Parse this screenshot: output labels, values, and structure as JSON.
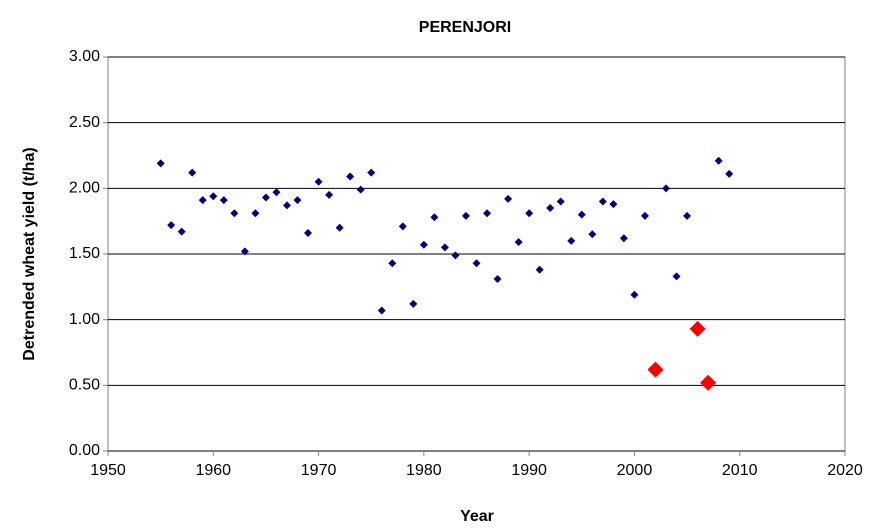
{
  "chart_data": {
    "type": "scatter",
    "title": "PERENJORI",
    "x_label": "Year",
    "y_label": "Detrended wheat yield (t/ha)",
    "series": [
      {
        "color": "#000080",
        "marker_size": 4,
        "x": [
          1955,
          1956,
          1957,
          1958,
          1959,
          1960,
          1961,
          1962,
          1963,
          1964,
          1965,
          1966,
          1967,
          1968,
          1969,
          1970,
          1971,
          1972,
          1973,
          1974,
          1975,
          1976,
          1977,
          1978,
          1979,
          1980,
          1981,
          1982,
          1983,
          1984,
          1985,
          1986,
          1987,
          1988,
          1989,
          1990,
          1991,
          1992,
          1993,
          1994,
          1995,
          1996,
          1997,
          1998,
          1999,
          2000,
          2001,
          2003,
          2004,
          2005,
          2008,
          2009
        ],
        "values": [
          2.19,
          1.72,
          1.67,
          2.12,
          1.91,
          1.94,
          1.91,
          1.81,
          1.52,
          1.81,
          1.93,
          1.97,
          1.87,
          1.91,
          1.66,
          2.05,
          1.95,
          1.7,
          2.09,
          1.99,
          2.12,
          1.07,
          1.43,
          1.71,
          1.12,
          1.57,
          1.78,
          1.55,
          1.49,
          1.79,
          1.43,
          1.81,
          1.31,
          1.92,
          1.59,
          1.81,
          1.38,
          1.85,
          1.9,
          1.6,
          1.8,
          1.65,
          1.9,
          1.88,
          1.62,
          1.19,
          1.79,
          2.0,
          1.33,
          1.79,
          2.21,
          2.11
        ]
      },
      {
        "color": "#ff0000",
        "marker_size": 8,
        "x": [
          2002,
          2006,
          2007
        ],
        "values": [
          0.62,
          0.93,
          0.52
        ]
      }
    ],
    "xlim": [
      1950,
      2020
    ],
    "xticks": [
      1950,
      1960,
      1970,
      1980,
      1990,
      2000,
      2010,
      2020
    ],
    "ylim": [
      0,
      3
    ],
    "yticks": [
      {
        "value": 0,
        "label": "0.00"
      },
      {
        "value": 0.5,
        "label": "0.50"
      },
      {
        "value": 1,
        "label": "1.00"
      },
      {
        "value": 1.5,
        "label": "1.50"
      },
      {
        "value": 2,
        "label": "2.00"
      },
      {
        "value": 2.5,
        "label": "2.50"
      },
      {
        "value": 3,
        "label": "3.00"
      }
    ],
    "grid": true
  }
}
